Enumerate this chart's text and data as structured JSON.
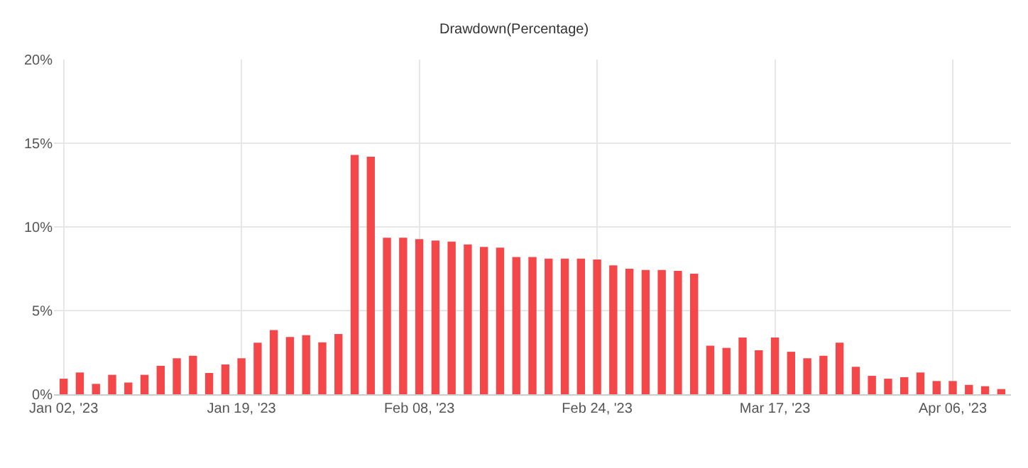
{
  "chart_data": {
    "type": "bar",
    "title": "Drawdown(Percentage)",
    "categories": [
      "Jan 02, '23",
      null,
      null,
      null,
      null,
      null,
      null,
      null,
      null,
      null,
      null,
      "Jan 19, '23",
      null,
      null,
      null,
      null,
      null,
      null,
      null,
      null,
      null,
      null,
      "Feb 08, '23",
      null,
      null,
      null,
      null,
      null,
      null,
      null,
      null,
      null,
      null,
      "Feb 24, '23",
      null,
      null,
      null,
      null,
      null,
      null,
      null,
      null,
      null,
      null,
      "Mar 17, '23",
      null,
      null,
      null,
      null,
      null,
      null,
      null,
      null,
      null,
      null,
      "Apr 06, '23",
      null,
      null,
      null
    ],
    "values": [
      0.93,
      1.3,
      0.62,
      1.16,
      0.7,
      1.16,
      1.7,
      2.15,
      2.3,
      1.27,
      1.78,
      2.15,
      3.08,
      3.84,
      3.42,
      3.53,
      3.1,
      3.6,
      14.3,
      14.2,
      9.35,
      9.35,
      9.27,
      9.18,
      9.12,
      8.95,
      8.8,
      8.76,
      8.2,
      8.2,
      8.1,
      8.1,
      8.1,
      8.05,
      7.7,
      7.5,
      7.43,
      7.43,
      7.37,
      7.2,
      2.9,
      2.77,
      3.39,
      2.63,
      3.39,
      2.54,
      2.15,
      2.3,
      3.08,
      1.64,
      1.1,
      0.93,
      1.02,
      1.3,
      0.79,
      0.79,
      0.56,
      0.48,
      0.31
    ],
    "color": "#f4474a",
    "ylim": [
      0,
      20
    ],
    "yticks": [
      {
        "value": 0,
        "label": "0%"
      },
      {
        "value": 5,
        "label": "5%"
      },
      {
        "value": 10,
        "label": "10%"
      },
      {
        "value": 15,
        "label": "15%"
      },
      {
        "value": 20,
        "label": "20%"
      }
    ],
    "grid": true
  }
}
